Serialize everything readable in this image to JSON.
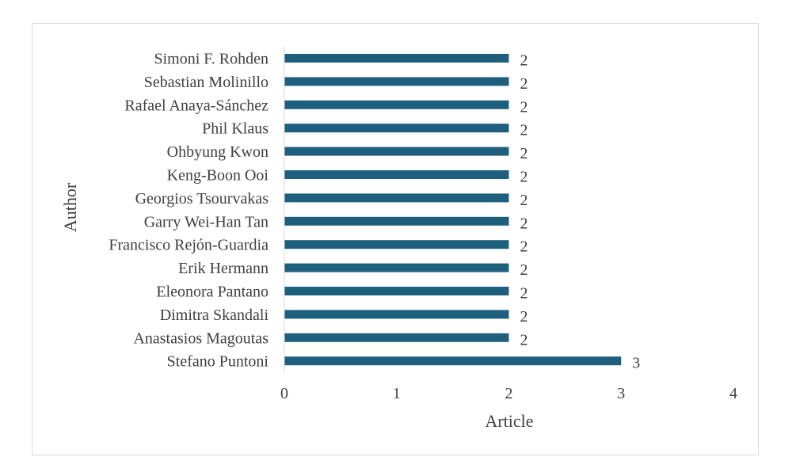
{
  "chart_data": {
    "type": "bar",
    "orientation": "horizontal",
    "categories": [
      "Simoni F. Rohden",
      "Sebastian Molinillo",
      "Rafael Anaya-Sánchez",
      "Phil Klaus",
      "Ohbyung Kwon",
      "Keng-Boon Ooi",
      "Georgios Tsourvakas",
      "Garry Wei-Han Tan",
      "Francisco Rejón-Guardia",
      "Erik Hermann",
      "Eleonora Pantano",
      "Dimitra Skandali",
      "Anastasios Magoutas",
      "Stefano Puntoni"
    ],
    "values": [
      2,
      2,
      2,
      2,
      2,
      2,
      2,
      2,
      2,
      2,
      2,
      2,
      2,
      3
    ],
    "xlabel": "Article",
    "ylabel": "Author",
    "xlim": [
      0,
      4
    ],
    "xticks": [
      "0",
      "1",
      "2",
      "3",
      "4"
    ],
    "grid": false,
    "data_labels": true,
    "bar_color": "#1f5f7e"
  }
}
